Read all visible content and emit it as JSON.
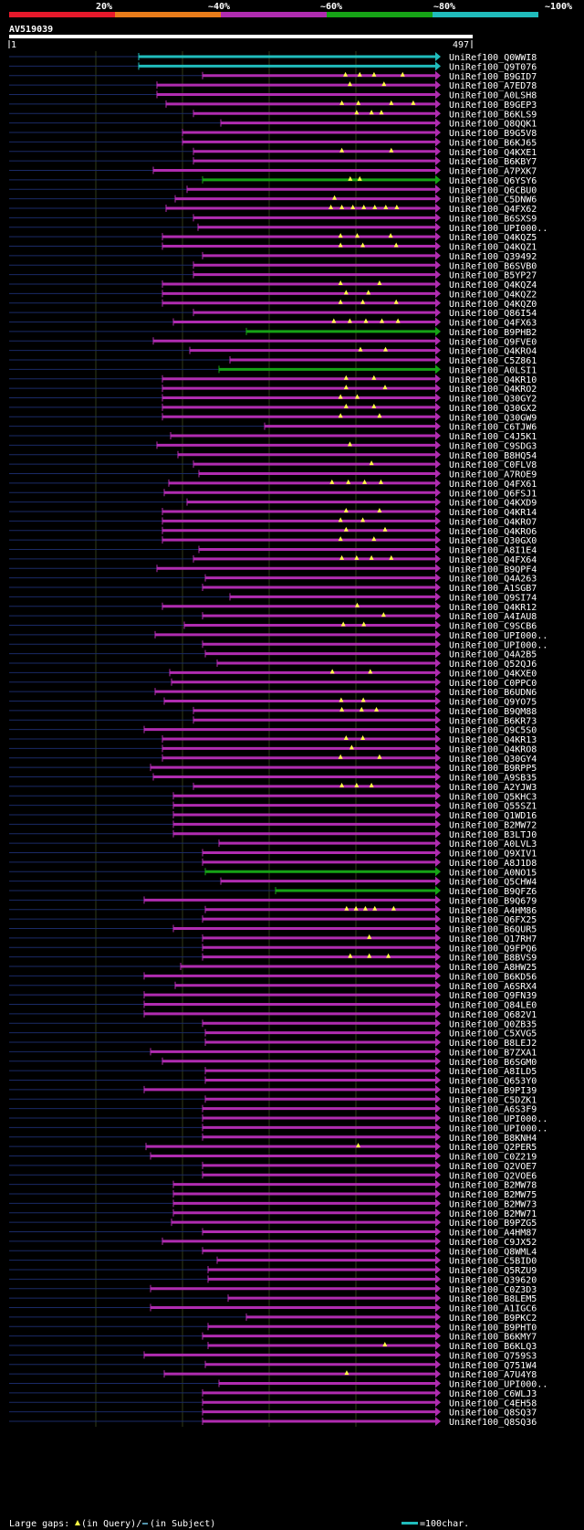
{
  "chart_data": {
    "type": "alignment-overview",
    "query": {
      "name": "AV519039",
      "start_label": "1",
      "end_label": "497",
      "length": 497
    },
    "identity_scale": {
      "labels": [
        "20%",
        "~40%",
        "~60%",
        "~80%",
        "~100%"
      ],
      "colors": [
        "#e6192b",
        "#e87c1a",
        "#b02cb0",
        "#16a316",
        "#20bcbc"
      ]
    },
    "legend": {
      "gaps_label": "Large gaps:",
      "query_gap": "(in Query)/",
      "subject_gap": "(in Subject)",
      "scale_label": "=100char."
    },
    "hits": [
      {
        "name": "UniRef100_Q0WWI8",
        "start": 152,
        "color": "cyan"
      },
      {
        "name": "UniRef100_Q9T076",
        "start": 152,
        "color": "cyan"
      },
      {
        "name": "UniRef100_B9GID7",
        "start": 222,
        "color": "magenta",
        "gaps": [
          0.6,
          0.66,
          0.72,
          0.84
        ]
      },
      {
        "name": "UniRef100_A7ED78",
        "start": 172,
        "color": "magenta",
        "gaps": [
          0.68,
          0.8
        ]
      },
      {
        "name": "UniRef100_A0LSH8",
        "start": 172,
        "color": "magenta"
      },
      {
        "name": "UniRef100_B9GEP3",
        "start": 182,
        "color": "magenta",
        "gaps": [
          0.64,
          0.7,
          0.82,
          0.9
        ]
      },
      {
        "name": "UniRef100_B6KLS9",
        "start": 212,
        "color": "magenta",
        "gaps": [
          0.66,
          0.72,
          0.76
        ]
      },
      {
        "name": "UniRef100_Q8QQK1",
        "start": 242,
        "color": "magenta"
      },
      {
        "name": "UniRef100_B9G5V8",
        "start": 200,
        "color": "magenta"
      },
      {
        "name": "UniRef100_B6KJ65",
        "start": 200,
        "color": "magenta"
      },
      {
        "name": "UniRef100_Q4KXE1",
        "start": 212,
        "color": "magenta",
        "gaps": [
          0.6,
          0.8
        ]
      },
      {
        "name": "UniRef100_B6KBY7",
        "start": 212,
        "color": "magenta"
      },
      {
        "name": "UniRef100_A7PXK7",
        "start": 168,
        "color": "magenta"
      },
      {
        "name": "UniRef100_Q6YSY6",
        "start": 222,
        "color": "green",
        "gaps": [
          0.62,
          0.66
        ]
      },
      {
        "name": "UniRef100_Q6CBU0",
        "start": 205,
        "color": "magenta"
      },
      {
        "name": "UniRef100_C5DNW6",
        "start": 192,
        "color": "magenta",
        "gaps": [
          0.6
        ]
      },
      {
        "name": "UniRef100_Q4FX62",
        "start": 182,
        "color": "magenta",
        "gaps": [
          0.6,
          0.64,
          0.68,
          0.72,
          0.76,
          0.8,
          0.84
        ]
      },
      {
        "name": "UniRef100_B6SXS9",
        "start": 212,
        "color": "magenta"
      },
      {
        "name": "UniRef100_UPI000..",
        "start": 217,
        "color": "magenta"
      },
      {
        "name": "UniRef100_Q4KQZ5",
        "start": 178,
        "color": "magenta",
        "gaps": [
          0.64,
          0.7,
          0.82
        ]
      },
      {
        "name": "UniRef100_Q4KQZ1",
        "start": 178,
        "color": "magenta",
        "gaps": [
          0.64,
          0.72,
          0.84
        ]
      },
      {
        "name": "UniRef100_Q39492",
        "start": 222,
        "color": "magenta"
      },
      {
        "name": "UniRef100_B6SVB0",
        "start": 212,
        "color": "magenta"
      },
      {
        "name": "UniRef100_B5YP27",
        "start": 212,
        "color": "magenta"
      },
      {
        "name": "UniRef100_Q4KQZ4",
        "start": 178,
        "color": "magenta",
        "gaps": [
          0.64,
          0.78
        ]
      },
      {
        "name": "UniRef100_Q4KQZ2",
        "start": 178,
        "color": "magenta",
        "gaps": [
          0.66,
          0.74
        ]
      },
      {
        "name": "UniRef100_Q4KQZ0",
        "start": 178,
        "color": "magenta",
        "gaps": [
          0.64,
          0.72,
          0.84
        ]
      },
      {
        "name": "UniRef100_Q86I54",
        "start": 212,
        "color": "magenta"
      },
      {
        "name": "UniRef100_Q4FX63",
        "start": 190,
        "color": "magenta",
        "gaps": [
          0.6,
          0.66,
          0.72,
          0.78,
          0.84
        ]
      },
      {
        "name": "UniRef100_B9PHB2",
        "start": 270,
        "color": "green"
      },
      {
        "name": "UniRef100_Q9FVE0",
        "start": 168,
        "color": "magenta"
      },
      {
        "name": "UniRef100_Q4KRO4",
        "start": 208,
        "color": "magenta",
        "gaps": [
          0.68,
          0.78
        ]
      },
      {
        "name": "UniRef100_C5Z861",
        "start": 252,
        "color": "magenta"
      },
      {
        "name": "UniRef100_A0LSI1",
        "start": 240,
        "color": "green"
      },
      {
        "name": "UniRef100_Q4KR10",
        "start": 178,
        "color": "magenta",
        "gaps": [
          0.66,
          0.76
        ]
      },
      {
        "name": "UniRef100_Q4KRO2",
        "start": 178,
        "color": "magenta",
        "gaps": [
          0.66,
          0.8
        ]
      },
      {
        "name": "UniRef100_Q30GY2",
        "start": 178,
        "color": "magenta",
        "gaps": [
          0.64,
          0.7
        ]
      },
      {
        "name": "UniRef100_Q30GX2",
        "start": 178,
        "color": "magenta",
        "gaps": [
          0.66,
          0.76
        ]
      },
      {
        "name": "UniRef100_Q30GW9",
        "start": 178,
        "color": "magenta",
        "gaps": [
          0.64,
          0.78
        ]
      },
      {
        "name": "UniRef100_C6TJW6",
        "start": 290,
        "color": "magenta"
      },
      {
        "name": "UniRef100_C4J5K1",
        "start": 187,
        "color": "magenta"
      },
      {
        "name": "UniRef100_C9SDG3",
        "start": 172,
        "color": "magenta",
        "gaps": [
          0.68
        ]
      },
      {
        "name": "UniRef100_B8HQ54",
        "start": 195,
        "color": "magenta"
      },
      {
        "name": "UniRef100_C0FLV8",
        "start": 212,
        "color": "magenta",
        "gaps": [
          0.72
        ]
      },
      {
        "name": "UniRef100_A7ROE9",
        "start": 218,
        "color": "magenta"
      },
      {
        "name": "UniRef100_Q4FX61",
        "start": 185,
        "color": "magenta",
        "gaps": [
          0.6,
          0.66,
          0.72,
          0.78
        ]
      },
      {
        "name": "UniRef100_Q6FSJ1",
        "start": 180,
        "color": "magenta"
      },
      {
        "name": "UniRef100_Q4KXD9",
        "start": 205,
        "color": "magenta"
      },
      {
        "name": "UniRef100_Q4KR14",
        "start": 178,
        "color": "magenta",
        "gaps": [
          0.66,
          0.78
        ]
      },
      {
        "name": "UniRef100_Q4KRO7",
        "start": 178,
        "color": "magenta",
        "gaps": [
          0.64,
          0.72
        ]
      },
      {
        "name": "UniRef100_Q4KRO6",
        "start": 178,
        "color": "magenta",
        "gaps": [
          0.66,
          0.8
        ]
      },
      {
        "name": "UniRef100_Q30GX0",
        "start": 178,
        "color": "magenta",
        "gaps": [
          0.64,
          0.76
        ]
      },
      {
        "name": "UniRef100_A8I1E4",
        "start": 218,
        "color": "magenta"
      },
      {
        "name": "UniRef100_Q4FX64",
        "start": 212,
        "color": "magenta",
        "gaps": [
          0.6,
          0.66,
          0.72,
          0.8
        ]
      },
      {
        "name": "UniRef100_B9QPF4",
        "start": 172,
        "color": "magenta"
      },
      {
        "name": "UniRef100_Q4A263",
        "start": 225,
        "color": "magenta"
      },
      {
        "name": "UniRef100_A1SGB7",
        "start": 222,
        "color": "magenta"
      },
      {
        "name": "UniRef100_Q9SI74",
        "start": 252,
        "color": "magenta"
      },
      {
        "name": "UniRef100_Q4KR12",
        "start": 178,
        "color": "magenta",
        "gaps": [
          0.7
        ]
      },
      {
        "name": "UniRef100_A4IAU8",
        "start": 222,
        "color": "magenta",
        "gaps": [
          0.76
        ]
      },
      {
        "name": "UniRef100_C9SCB6",
        "start": 202,
        "color": "magenta",
        "gaps": [
          0.62,
          0.7
        ]
      },
      {
        "name": "UniRef100_UPI000..",
        "start": 170,
        "color": "magenta"
      },
      {
        "name": "UniRef100_UPI000..",
        "start": 222,
        "color": "magenta"
      },
      {
        "name": "UniRef100_Q4A2B5",
        "start": 225,
        "color": "magenta"
      },
      {
        "name": "UniRef100_Q52QJ6",
        "start": 238,
        "color": "magenta"
      },
      {
        "name": "UniRef100_Q4KXE0",
        "start": 186,
        "color": "magenta",
        "gaps": [
          0.6,
          0.74
        ]
      },
      {
        "name": "UniRef100_C0PPC0",
        "start": 188,
        "color": "magenta"
      },
      {
        "name": "UniRef100_B6UDN6",
        "start": 170,
        "color": "magenta"
      },
      {
        "name": "UniRef100_Q9YO75",
        "start": 180,
        "color": "magenta",
        "gaps": [
          0.64,
          0.72
        ]
      },
      {
        "name": "UniRef100_B9QM88",
        "start": 212,
        "color": "magenta",
        "gaps": [
          0.6,
          0.68,
          0.74
        ]
      },
      {
        "name": "UniRef100_B6KR73",
        "start": 212,
        "color": "magenta"
      },
      {
        "name": "UniRef100_Q9C5S0",
        "start": 158,
        "color": "magenta"
      },
      {
        "name": "UniRef100_Q4KR13",
        "start": 178,
        "color": "magenta",
        "gaps": [
          0.66,
          0.72
        ]
      },
      {
        "name": "UniRef100_Q4KRO8",
        "start": 178,
        "color": "magenta",
        "gaps": [
          0.68
        ]
      },
      {
        "name": "UniRef100_Q30GY4",
        "start": 178,
        "color": "magenta",
        "gaps": [
          0.64,
          0.78
        ]
      },
      {
        "name": "UniRef100_B9RPP5",
        "start": 165,
        "color": "magenta"
      },
      {
        "name": "UniRef100_A9SB35",
        "start": 168,
        "color": "magenta"
      },
      {
        "name": "UniRef100_A2YJW3",
        "start": 212,
        "color": "magenta",
        "gaps": [
          0.6,
          0.66,
          0.72
        ]
      },
      {
        "name": "UniRef100_Q5KHC3",
        "start": 190,
        "color": "magenta"
      },
      {
        "name": "UniRef100_Q55SZ1",
        "start": 190,
        "color": "magenta"
      },
      {
        "name": "UniRef100_Q1WD16",
        "start": 190,
        "color": "magenta"
      },
      {
        "name": "UniRef100_B2MW72",
        "start": 190,
        "color": "magenta"
      },
      {
        "name": "UniRef100_B3LTJ0",
        "start": 190,
        "color": "magenta"
      },
      {
        "name": "UniRef100_A0LVL3",
        "start": 240,
        "color": "magenta"
      },
      {
        "name": "UniRef100_Q9XIV1",
        "start": 222,
        "color": "magenta"
      },
      {
        "name": "UniRef100_A8J1D8",
        "start": 222,
        "color": "magenta"
      },
      {
        "name": "UniRef100_A0NO15",
        "start": 225,
        "color": "green"
      },
      {
        "name": "UniRef100_Q5CHW4",
        "start": 242,
        "color": "magenta"
      },
      {
        "name": "UniRef100_B9QFZ6",
        "start": 302,
        "color": "green"
      },
      {
        "name": "UniRef100_B9Q679",
        "start": 158,
        "color": "magenta"
      },
      {
        "name": "UniRef100_A4HM86",
        "start": 225,
        "color": "magenta",
        "gaps": [
          0.6,
          0.64,
          0.68,
          0.72,
          0.8
        ]
      },
      {
        "name": "UniRef100_Q6FX25",
        "start": 222,
        "color": "magenta"
      },
      {
        "name": "UniRef100_B6QUR5",
        "start": 190,
        "color": "magenta"
      },
      {
        "name": "UniRef100_Q17RH7",
        "start": 222,
        "color": "magenta",
        "gaps": [
          0.7
        ]
      },
      {
        "name": "UniRef100_Q9FPQ6",
        "start": 222,
        "color": "magenta"
      },
      {
        "name": "UniRef100_B8BVS9",
        "start": 222,
        "color": "magenta",
        "gaps": [
          0.62,
          0.7,
          0.78
        ]
      },
      {
        "name": "UniRef100_A8HW25",
        "start": 198,
        "color": "magenta"
      },
      {
        "name": "UniRef100_B6KD56",
        "start": 158,
        "color": "magenta"
      },
      {
        "name": "UniRef100_A6SRX4",
        "start": 192,
        "color": "magenta"
      },
      {
        "name": "UniRef100_Q9FN39",
        "start": 158,
        "color": "magenta"
      },
      {
        "name": "UniRef100_Q84LE0",
        "start": 158,
        "color": "magenta"
      },
      {
        "name": "UniRef100_Q682V1",
        "start": 158,
        "color": "magenta"
      },
      {
        "name": "UniRef100_Q0ZB35",
        "start": 222,
        "color": "magenta"
      },
      {
        "name": "UniRef100_C5XVG5",
        "start": 225,
        "color": "magenta"
      },
      {
        "name": "UniRef100_B8LEJ2",
        "start": 225,
        "color": "magenta"
      },
      {
        "name": "UniRef100_B7ZXA1",
        "start": 165,
        "color": "magenta"
      },
      {
        "name": "UniRef100_B6SGM0",
        "start": 178,
        "color": "magenta"
      },
      {
        "name": "UniRef100_A8ILD5",
        "start": 225,
        "color": "magenta"
      },
      {
        "name": "UniRef100_Q653Y0",
        "start": 225,
        "color": "magenta"
      },
      {
        "name": "UniRef100_B9PI39",
        "start": 158,
        "color": "magenta"
      },
      {
        "name": "UniRef100_C5DZK1",
        "start": 225,
        "color": "magenta"
      },
      {
        "name": "UniRef100_A6S3F9",
        "start": 222,
        "color": "magenta"
      },
      {
        "name": "UniRef100_UPI000..",
        "start": 222,
        "color": "magenta"
      },
      {
        "name": "UniRef100_UPI000..",
        "start": 222,
        "color": "magenta"
      },
      {
        "name": "UniRef100_B8KNH4",
        "start": 222,
        "color": "magenta"
      },
      {
        "name": "UniRef100_Q2PER5",
        "start": 160,
        "color": "magenta",
        "gaps": [
          0.72
        ]
      },
      {
        "name": "UniRef100_C0Z219",
        "start": 165,
        "color": "magenta"
      },
      {
        "name": "UniRef100_Q2VOE7",
        "start": 222,
        "color": "magenta"
      },
      {
        "name": "UniRef100_Q2VOE6",
        "start": 222,
        "color": "magenta"
      },
      {
        "name": "UniRef100_B2MW78",
        "start": 190,
        "color": "magenta"
      },
      {
        "name": "UniRef100_B2MW75",
        "start": 190,
        "color": "magenta"
      },
      {
        "name": "UniRef100_B2MW73",
        "start": 190,
        "color": "magenta"
      },
      {
        "name": "UniRef100_B2MW71",
        "start": 190,
        "color": "magenta"
      },
      {
        "name": "UniRef100_B9PZG5",
        "start": 188,
        "color": "magenta"
      },
      {
        "name": "UniRef100_A4HM87",
        "start": 222,
        "color": "magenta"
      },
      {
        "name": "UniRef100_C9JX52",
        "start": 178,
        "color": "magenta"
      },
      {
        "name": "UniRef100_Q8WML4",
        "start": 222,
        "color": "magenta"
      },
      {
        "name": "UniRef100_C5BID0",
        "start": 238,
        "color": "magenta"
      },
      {
        "name": "UniRef100_Q5RZU9",
        "start": 228,
        "color": "magenta"
      },
      {
        "name": "UniRef100_Q39620",
        "start": 228,
        "color": "magenta"
      },
      {
        "name": "UniRef100_C0Z3D3",
        "start": 165,
        "color": "magenta"
      },
      {
        "name": "UniRef100_B8LEM5",
        "start": 250,
        "color": "magenta"
      },
      {
        "name": "UniRef100_A1IGC6",
        "start": 165,
        "color": "magenta"
      },
      {
        "name": "UniRef100_B9PKC2",
        "start": 270,
        "color": "magenta"
      },
      {
        "name": "UniRef100_B9PHT0",
        "start": 228,
        "color": "magenta"
      },
      {
        "name": "UniRef100_B6KMY7",
        "start": 222,
        "color": "magenta"
      },
      {
        "name": "UniRef100_B6KLQ3",
        "start": 228,
        "color": "magenta",
        "gaps": [
          0.76
        ]
      },
      {
        "name": "UniRef100_Q759S3",
        "start": 158,
        "color": "magenta"
      },
      {
        "name": "UniRef100_Q751W4",
        "start": 225,
        "color": "magenta"
      },
      {
        "name": "UniRef100_A7U4Y8",
        "start": 180,
        "color": "magenta",
        "gaps": [
          0.66
        ]
      },
      {
        "name": "UniRef100_UPI000..",
        "start": 240,
        "color": "magenta"
      },
      {
        "name": "UniRef100_C6WLJ3",
        "start": 222,
        "color": "magenta"
      },
      {
        "name": "UniRef100_C4EH58",
        "start": 222,
        "color": "magenta"
      },
      {
        "name": "UniRef100_Q8SQ37",
        "start": 222,
        "color": "magenta"
      },
      {
        "name": "UniRef100_Q8SQ36",
        "start": 222,
        "color": "magenta"
      }
    ]
  }
}
